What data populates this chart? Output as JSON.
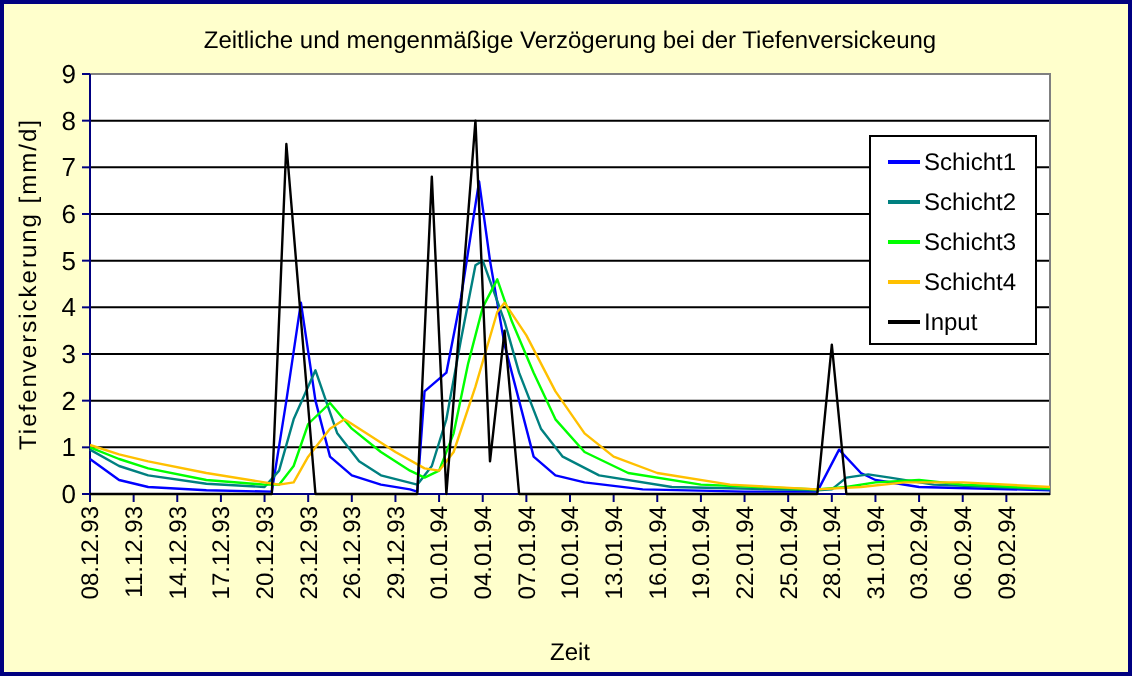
{
  "chart_data": {
    "type": "line",
    "title": "Zeitliche und mengenmäßige Verzögerung bei der Tiefenversickeung",
    "xlabel": "Zeit",
    "ylabel": "Tiefenversickerung [mm/d]",
    "xlim": [
      "1993-12-08",
      "1994-02-12"
    ],
    "xticks": [
      {
        "value": "1993-12-08",
        "label": "08.12.93"
      },
      {
        "value": "1993-12-11",
        "label": "11.12.93"
      },
      {
        "value": "1993-12-14",
        "label": "14.12.93"
      },
      {
        "value": "1993-12-17",
        "label": "17.12.93"
      },
      {
        "value": "1993-12-20",
        "label": "20.12.93"
      },
      {
        "value": "1993-12-23",
        "label": "23.12.93"
      },
      {
        "value": "1993-12-26",
        "label": "26.12.93"
      },
      {
        "value": "1993-12-29",
        "label": "29.12.93"
      },
      {
        "value": "1994-01-01",
        "label": "01.01.94"
      },
      {
        "value": "1994-01-04",
        "label": "04.01.94"
      },
      {
        "value": "1994-01-07",
        "label": "07.01.94"
      },
      {
        "value": "1994-01-10",
        "label": "10.01.94"
      },
      {
        "value": "1994-01-13",
        "label": "13.01.94"
      },
      {
        "value": "1994-01-16",
        "label": "16.01.94"
      },
      {
        "value": "1994-01-19",
        "label": "19.01.94"
      },
      {
        "value": "1994-01-22",
        "label": "22.01.94"
      },
      {
        "value": "1994-01-25",
        "label": "25.01.94"
      },
      {
        "value": "1994-01-28",
        "label": "28.01.94"
      },
      {
        "value": "1994-01-31",
        "label": "31.01.94"
      },
      {
        "value": "1994-02-03",
        "label": "03.02.94"
      },
      {
        "value": "1994-02-06",
        "label": "06.02.94"
      },
      {
        "value": "1994-02-09",
        "label": "09.02.94"
      }
    ],
    "ylim": [
      0,
      9
    ],
    "yticks": [
      0,
      1,
      2,
      3,
      4,
      5,
      6,
      7,
      8,
      9
    ],
    "grid": "y",
    "legend": "right",
    "marker": "none",
    "line_style": "solid",
    "series": [
      {
        "name": "Schicht1",
        "color": "#0000ff",
        "x": [
          "1993-12-08",
          "1993-12-10",
          "1993-12-12",
          "1993-12-16",
          "1993-12-20T12:00",
          "1993-12-21T12:00",
          "1993-12-22T12:00",
          "1993-12-23T12:00",
          "1993-12-24T12:00",
          "1993-12-26",
          "1993-12-28",
          "1993-12-30",
          "1993-12-30T12:00",
          "1993-12-31",
          "1994-01-01T12:00",
          "1994-01-02T12:00",
          "1994-01-03T18:00",
          "1994-01-04T12:00",
          "1994-01-05T12:00",
          "1994-01-06T12:00",
          "1994-01-07T12:00",
          "1994-01-09",
          "1994-01-11",
          "1994-01-15",
          "1994-01-22",
          "1994-01-27",
          "1994-01-28T12:00",
          "1994-01-30",
          "1994-01-31",
          "1994-02-03",
          "1994-02-12"
        ],
        "values": [
          0.75,
          0.3,
          0.15,
          0.08,
          0.05,
          2.0,
          4.1,
          2.0,
          0.8,
          0.4,
          0.2,
          0.1,
          0.05,
          2.2,
          2.6,
          4.2,
          6.7,
          5.0,
          3.2,
          2.0,
          0.8,
          0.4,
          0.25,
          0.1,
          0.05,
          0.05,
          0.95,
          0.45,
          0.3,
          0.15,
          0.08
        ]
      },
      {
        "name": "Schicht2",
        "color": "#008080",
        "x": [
          "1993-12-08",
          "1993-12-10",
          "1993-12-12",
          "1993-12-16",
          "1993-12-20",
          "1993-12-21",
          "1993-12-22",
          "1993-12-23T12:00",
          "1993-12-25",
          "1993-12-26T12:00",
          "1993-12-28",
          "1993-12-30T12:00",
          "1993-12-31T12:00",
          "1994-01-01T12:00",
          "1994-01-02T12:00",
          "1994-01-03T12:00",
          "1994-01-04",
          "1994-01-05T12:00",
          "1994-01-06T12:00",
          "1994-01-08",
          "1994-01-09T12:00",
          "1994-01-12",
          "1994-01-17",
          "1994-01-27",
          "1994-01-28",
          "1994-01-29",
          "1994-01-30T12:00",
          "1994-02-01",
          "1994-02-04",
          "1994-02-12"
        ],
        "values": [
          0.95,
          0.6,
          0.4,
          0.22,
          0.15,
          0.5,
          1.6,
          2.65,
          1.3,
          0.7,
          0.4,
          0.2,
          0.6,
          1.6,
          3.3,
          4.9,
          5.0,
          3.7,
          2.6,
          1.4,
          0.8,
          0.4,
          0.15,
          0.08,
          0.1,
          0.35,
          0.42,
          0.35,
          0.2,
          0.1
        ]
      },
      {
        "name": "Schicht3",
        "color": "#00ff00",
        "x": [
          "1993-12-08",
          "1993-12-10",
          "1993-12-12",
          "1993-12-16",
          "1993-12-20",
          "1993-12-21",
          "1993-12-22",
          "1993-12-23",
          "1993-12-24T12:00",
          "1993-12-26",
          "1993-12-28",
          "1993-12-30",
          "1993-12-31",
          "1994-01-01",
          "1994-01-02",
          "1994-01-03",
          "1994-01-04",
          "1994-01-05",
          "1994-01-06",
          "1994-01-07T12:00",
          "1994-01-09",
          "1994-01-11",
          "1994-01-14",
          "1994-01-19",
          "1994-01-27",
          "1994-01-29",
          "1994-01-31",
          "1994-02-03",
          "1994-02-06",
          "1994-02-12"
        ],
        "values": [
          1.0,
          0.75,
          0.55,
          0.3,
          0.2,
          0.2,
          0.6,
          1.5,
          1.95,
          1.4,
          0.9,
          0.5,
          0.35,
          0.5,
          1.3,
          2.8,
          4.0,
          4.6,
          3.7,
          2.6,
          1.6,
          0.9,
          0.45,
          0.2,
          0.1,
          0.15,
          0.25,
          0.3,
          0.2,
          0.12
        ]
      },
      {
        "name": "Schicht4",
        "color": "#ffc000",
        "x": [
          "1993-12-08",
          "1993-12-10",
          "1993-12-12",
          "1993-12-16",
          "1993-12-20",
          "1993-12-21",
          "1993-12-22",
          "1993-12-23",
          "1993-12-24T12:00",
          "1993-12-25T12:00",
          "1993-12-27",
          "1993-12-29",
          "1993-12-31",
          "1994-01-01",
          "1994-01-02",
          "1994-01-03T12:00",
          "1994-01-05",
          "1994-01-05T12:00",
          "1994-01-07",
          "1994-01-09",
          "1994-01-11",
          "1994-01-13",
          "1994-01-16",
          "1994-01-21",
          "1994-01-27",
          "1994-01-30",
          "1994-02-02",
          "1994-02-06",
          "1994-02-12"
        ],
        "values": [
          1.05,
          0.85,
          0.7,
          0.45,
          0.25,
          0.2,
          0.25,
          0.8,
          1.4,
          1.6,
          1.3,
          0.9,
          0.55,
          0.5,
          0.9,
          2.3,
          3.9,
          4.1,
          3.4,
          2.2,
          1.3,
          0.8,
          0.45,
          0.2,
          0.1,
          0.15,
          0.25,
          0.25,
          0.15
        ]
      },
      {
        "name": "Input",
        "color": "#000000",
        "x": [
          "1993-12-08",
          "1993-12-20T12:00",
          "1993-12-21T12:00",
          "1993-12-23T12:00",
          "1993-12-30T12:00",
          "1993-12-31T12:00",
          "1994-01-01T12:00",
          "1994-01-03T12:00",
          "1994-01-04T12:00",
          "1994-01-05T12:00",
          "1994-01-06T12:00",
          "1994-01-27",
          "1994-01-28",
          "1994-01-29",
          "1994-02-12"
        ],
        "values": [
          0,
          0,
          7.5,
          0,
          0,
          6.8,
          0,
          8.0,
          0.7,
          3.5,
          0,
          0,
          3.2,
          0,
          0
        ]
      }
    ]
  }
}
